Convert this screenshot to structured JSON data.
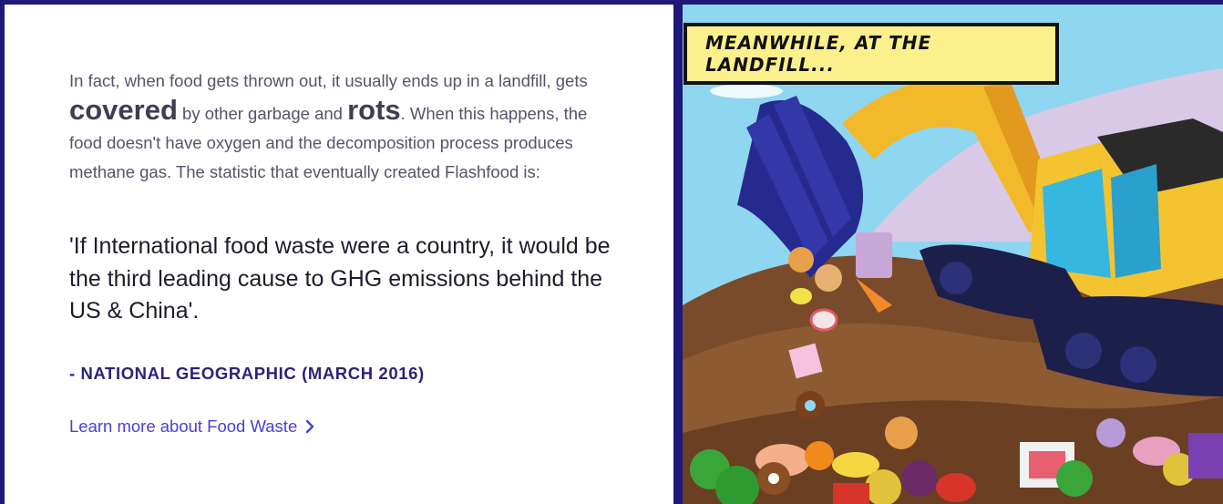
{
  "article": {
    "para_1": "In fact, when food gets thrown out, it usually ends up in a landfill, gets ",
    "emph_covered": "covered",
    "para_2": " by other garbage and ",
    "emph_rots": "rots",
    "para_3": ". When this happens, the food doesn't have oxygen and the decomposition process produces methane gas. The statistic that eventually created Flashfood is:",
    "quote": "'If International food waste were a country, it would be the third leading cause to GHG emissions behind the US & China'.",
    "source": "- NATIONAL GEOGRAPHIC (MARCH 2016)",
    "link_label": "Learn more about Food Waste"
  },
  "illustration": {
    "caption": "MEANWHILE, AT THE LANDFILL..."
  },
  "colors": {
    "frame": "#1e1878",
    "link": "#4a3fd8",
    "caption_bg": "#fbf08c"
  },
  "icons": {
    "link_chevron": "chevron-right-icon"
  }
}
